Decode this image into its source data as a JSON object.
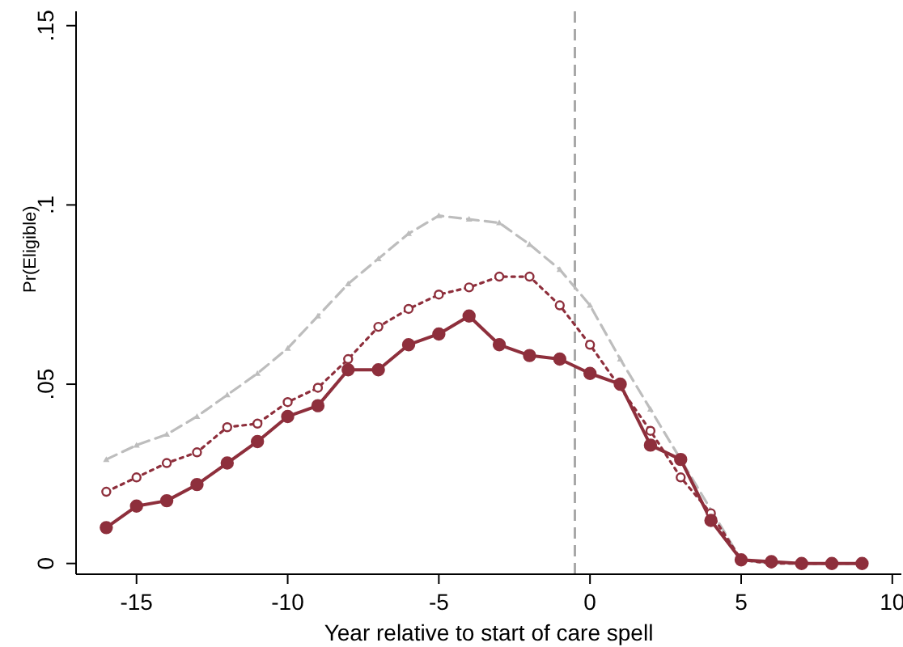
{
  "chart_data": {
    "type": "line",
    "xlabel": "Year relative to start of care spell",
    "ylabel": "Pr(Eligible)",
    "x": [
      -16,
      -15,
      -14,
      -13,
      -12,
      -11,
      -10,
      -9,
      -8,
      -7,
      -6,
      -5,
      -4,
      -3,
      -2,
      -1,
      0,
      1,
      2,
      3,
      4,
      5,
      6,
      7,
      8,
      9
    ],
    "series": [
      {
        "color": "#bdbdbd",
        "marker": "triangle",
        "line_style": "dashed",
        "values": [
          0.029,
          0.033,
          0.036,
          0.041,
          0.047,
          0.053,
          0.06,
          0.069,
          0.078,
          0.085,
          0.092,
          0.097,
          0.096,
          0.095,
          0.089,
          0.082,
          0.072,
          0.057,
          0.043,
          null,
          null,
          0.001,
          0,
          0,
          0,
          0
        ]
      },
      {
        "color": "#8e2f3c",
        "marker": "circle",
        "line_style": "dotted",
        "values": [
          0.02,
          0.024,
          0.028,
          0.031,
          0.038,
          0.039,
          0.045,
          0.049,
          0.057,
          0.066,
          0.071,
          0.075,
          0.077,
          0.08,
          0.08,
          0.072,
          0.061,
          null,
          0.037,
          0.024,
          0.014,
          0.001,
          0,
          0,
          0,
          0
        ]
      },
      {
        "color": "#8e2f3c",
        "marker": "circle",
        "line_style": "solid",
        "values": [
          0.01,
          0.016,
          0.0175,
          0.022,
          0.028,
          0.034,
          0.041,
          0.044,
          0.054,
          0.054,
          0.061,
          0.064,
          0.069,
          0.061,
          0.058,
          0.057,
          0.053,
          0.05,
          0.033,
          0.029,
          0.012,
          0.001,
          0.0005,
          0,
          0,
          0
        ]
      }
    ],
    "xlim": [
      -17,
      10.3
    ],
    "xticks": [
      -15,
      -10,
      -5,
      0,
      5,
      10
    ],
    "ylim": [
      -0.003,
      0.154
    ],
    "yticks": [
      {
        "value": 0,
        "label": "0"
      },
      {
        "value": 0.05,
        "label": ".05"
      },
      {
        "value": 0.1,
        "label": ".1"
      },
      {
        "value": 0.15,
        "label": ".15"
      }
    ],
    "ref_lines": [
      {
        "axis": "x",
        "value": -0.5,
        "color": "#a8a8a8",
        "line_style": "dashed"
      }
    ],
    "grid": false,
    "legend": false
  }
}
